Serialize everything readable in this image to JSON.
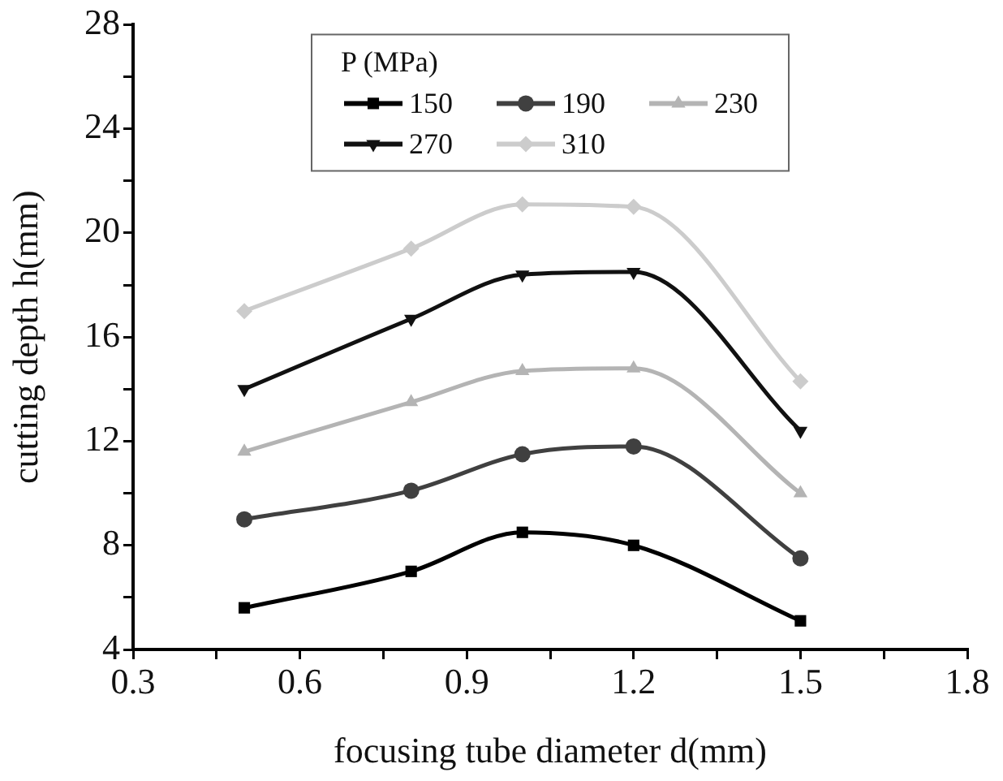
{
  "chart_data": {
    "type": "line",
    "xlabel": "focusing tube diameter d(mm)",
    "ylabel": "cutting depth h(mm)",
    "legend_title": "P (MPa)",
    "x": [
      0.5,
      0.8,
      1.0,
      1.2,
      1.5
    ],
    "series": [
      {
        "name": "150",
        "color": "#000000",
        "marker": "square",
        "values": [
          5.6,
          7.0,
          8.5,
          8.0,
          5.1
        ]
      },
      {
        "name": "190",
        "color": "#404040",
        "marker": "circle",
        "values": [
          9.0,
          10.1,
          11.5,
          11.8,
          7.5
        ]
      },
      {
        "name": "230",
        "color": "#b4b4b4",
        "marker": "triangle",
        "values": [
          11.6,
          13.5,
          14.7,
          14.8,
          10.0
        ]
      },
      {
        "name": "270",
        "color": "#111111",
        "marker": "triangle-down",
        "values": [
          14.0,
          16.7,
          18.4,
          18.5,
          12.4
        ]
      },
      {
        "name": "310",
        "color": "#cccccc",
        "marker": "diamond",
        "values": [
          17.0,
          19.4,
          21.1,
          21.0,
          14.3
        ]
      }
    ],
    "xlim": [
      0.3,
      1.8
    ],
    "ylim": [
      4,
      28
    ],
    "xticks": [
      0.3,
      {
        "value": 0.45,
        "label": null
      },
      0.6,
      {
        "value": 0.75,
        "label": null
      },
      0.9,
      {
        "value": 1.05,
        "label": null
      },
      1.2,
      {
        "value": 1.35,
        "label": null
      },
      1.5,
      {
        "value": 1.65,
        "label": null
      },
      1.8
    ],
    "yticks": [
      4,
      {
        "value": 6,
        "label": null
      },
      8,
      {
        "value": 10,
        "label": null
      },
      12,
      {
        "value": 14,
        "label": null
      },
      16,
      {
        "value": 18,
        "label": null
      },
      20,
      {
        "value": 22,
        "label": null
      },
      24,
      {
        "value": 26,
        "label": null
      },
      28
    ],
    "grid": false,
    "legend": "top",
    "line_style": "solid"
  }
}
